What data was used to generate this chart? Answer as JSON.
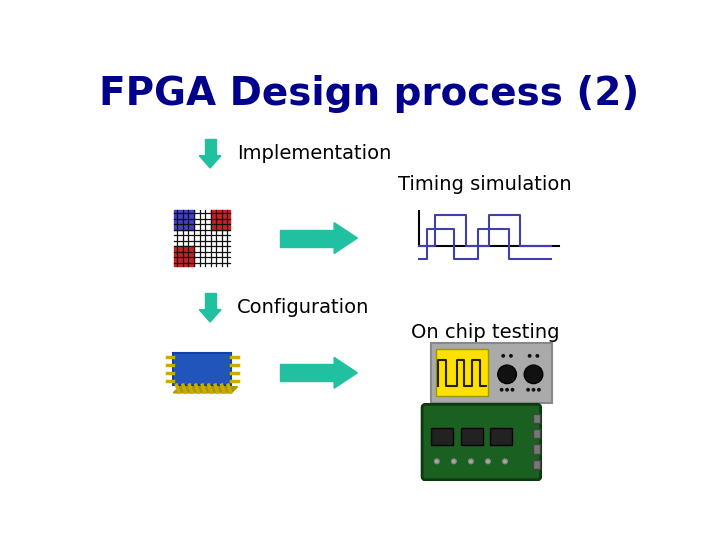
{
  "title": "FPGA Design process (2)",
  "title_color": "#00008B",
  "title_fontsize": 28,
  "title_weight": "bold",
  "bg_color": "#ffffff",
  "arrow_color": "#20C0A0",
  "label_implementation": "Implementation",
  "label_configuration": "Configuration",
  "label_timing": "Timing simulation",
  "label_onchip": "On chip testing",
  "label_fontsize": 14,
  "label_color": "#000000"
}
